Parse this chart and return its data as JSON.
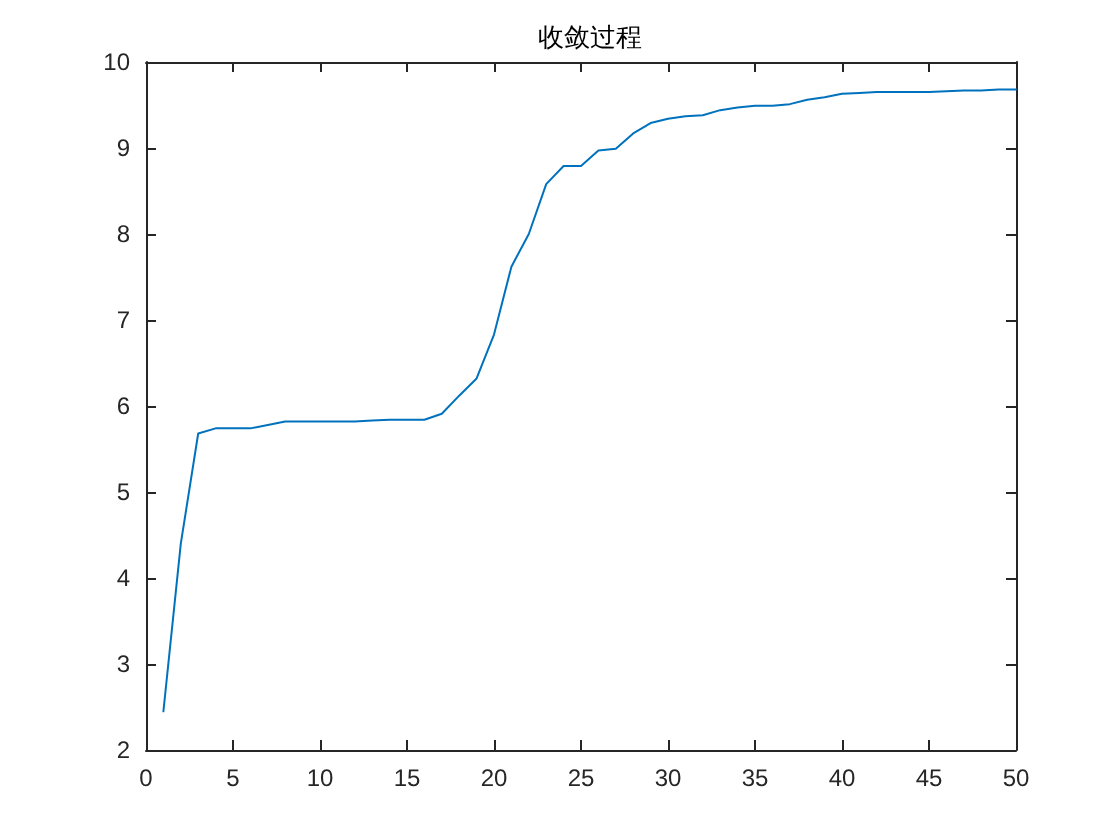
{
  "chart_data": {
    "type": "line",
    "title": "收敛过程",
    "x": [
      1,
      2,
      3,
      4,
      5,
      6,
      7,
      8,
      9,
      10,
      11,
      12,
      13,
      14,
      15,
      16,
      17,
      18,
      19,
      20,
      21,
      22,
      23,
      24,
      25,
      26,
      27,
      28,
      29,
      30,
      31,
      32,
      33,
      34,
      35,
      36,
      37,
      38,
      39,
      40,
      41,
      42,
      43,
      44,
      45,
      46,
      47,
      48,
      49,
      50
    ],
    "series": [
      {
        "color": "#0072bd",
        "values": [
          2.45,
          4.4,
          5.68,
          5.74,
          5.74,
          5.74,
          5.78,
          5.82,
          5.82,
          5.82,
          5.82,
          5.82,
          5.83,
          5.84,
          5.84,
          5.84,
          5.91,
          6.12,
          6.32,
          6.83,
          7.62,
          8.0,
          8.58,
          8.79,
          8.79,
          8.97,
          8.99,
          9.17,
          9.29,
          9.34,
          9.37,
          9.38,
          9.44,
          9.47,
          9.49,
          9.49,
          9.51,
          9.56,
          9.59,
          9.63,
          9.64,
          9.65,
          9.65,
          9.65,
          9.65,
          9.66,
          9.67,
          9.67,
          9.68,
          9.68
        ]
      }
    ],
    "xlim": [
      0,
      50
    ],
    "xticks": [
      0,
      5,
      10,
      15,
      20,
      25,
      30,
      35,
      40,
      45,
      50
    ],
    "ylim": [
      2,
      10
    ],
    "yticks": [
      2,
      3,
      4,
      5,
      6,
      7,
      8,
      9,
      10
    ],
    "grid": false,
    "marker": "none",
    "line_style": "solid"
  }
}
